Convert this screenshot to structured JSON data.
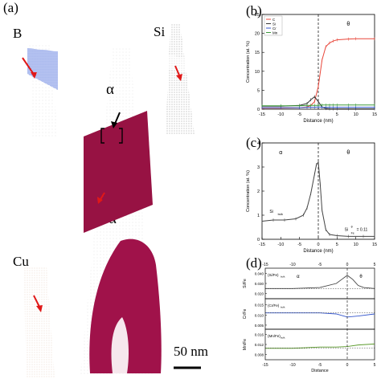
{
  "figure": {
    "panel_a": "(a)",
    "panel_b": "(b)",
    "panel_c": "(c)",
    "panel_d": "(d)",
    "element_B": "B",
    "element_Si": "Si",
    "element_Cu": "Cu",
    "phase_alpha": "α",
    "phase_theta": "θ",
    "phase_alpha_prime": "α'",
    "scale_bar": "50 nm"
  },
  "colors": {
    "boron": "#2f56d6",
    "silicon": "#777777",
    "copper": "#c8a98a",
    "carbide": "#a0124a",
    "arrow_red": "#e01818"
  },
  "chart_data": [
    {
      "type": "line",
      "xlabel": "Distance (nm)",
      "ylabel": "Concentration (at. %)",
      "xlim": [
        -15,
        15
      ],
      "ylim": [
        0,
        25
      ],
      "xticks": [
        "-15",
        "-10",
        "-5",
        "0",
        "5",
        "10",
        "15"
      ],
      "yticks": [
        "0",
        "5",
        "10",
        "15",
        "20",
        "25"
      ],
      "region_labels": [
        "α",
        "θ"
      ],
      "legend": [
        "C",
        "Si",
        "Cr",
        "Mn"
      ],
      "x": [
        -15,
        -10,
        -5,
        -3,
        -2,
        -1,
        0,
        1,
        2,
        3,
        4,
        5,
        8,
        10,
        15
      ],
      "series": [
        {
          "name": "C",
          "color": "#e8463a",
          "values": [
            0.3,
            0.3,
            0.4,
            0.6,
            1.0,
            2.0,
            6.0,
            13.0,
            16.5,
            17.5,
            18.0,
            18.3,
            18.5,
            18.6,
            18.6
          ]
        },
        {
          "name": "Si",
          "color": "#333333",
          "values": [
            0.8,
            0.8,
            1.0,
            1.5,
            2.5,
            3.3,
            2.0,
            0.6,
            0.2,
            0.1,
            0.1,
            0.1,
            0.1,
            0.1,
            0.1
          ]
        },
        {
          "name": "Cr",
          "color": "#3355cc",
          "values": [
            0.4,
            0.4,
            0.4,
            0.5,
            0.5,
            0.5,
            0.6,
            0.5,
            0.5,
            0.5,
            0.5,
            0.5,
            0.5,
            0.5,
            0.5
          ]
        },
        {
          "name": "Mn",
          "color": "#3a9a3a",
          "values": [
            0.9,
            0.9,
            0.9,
            1.0,
            1.0,
            1.0,
            1.0,
            1.1,
            1.1,
            1.1,
            1.1,
            1.1,
            1.1,
            1.1,
            1.1
          ]
        }
      ]
    },
    {
      "type": "line",
      "xlabel": "Distance (nm)",
      "ylabel": "Concentration (at. %)",
      "xlim": [
        -15,
        15
      ],
      "ylim": [
        0,
        4
      ],
      "xticks": [
        "-15",
        "-10",
        "-5",
        "0",
        "5",
        "10",
        "15"
      ],
      "yticks": [
        "0",
        "1",
        "2",
        "3",
        "4"
      ],
      "region_labels": [
        "α",
        "θ"
      ],
      "annotations": [
        "Si",
        "bulk",
        "Si",
        "θ",
        "Fe",
        "= 0.11"
      ],
      "x": [
        -15,
        -12,
        -9,
        -6,
        -4,
        -3,
        -2,
        -1,
        -0.5,
        0,
        0.5,
        1,
        2,
        3,
        5,
        8,
        12,
        15
      ],
      "series": [
        {
          "name": "Si",
          "color": "#444444",
          "values": [
            0.75,
            0.8,
            0.8,
            0.85,
            1.0,
            1.3,
            1.9,
            2.7,
            3.1,
            3.2,
            2.3,
            1.2,
            0.4,
            0.2,
            0.15,
            0.12,
            0.12,
            0.12
          ]
        }
      ]
    },
    {
      "type": "line",
      "xlabel": "Distance",
      "xlim": [
        -15,
        5
      ],
      "xticks": [
        "-15",
        "-10",
        "-5",
        "0",
        "5"
      ],
      "region_labels": [
        "α",
        "θ"
      ],
      "panels": [
        {
          "ylabel": "Si/Fe",
          "label": "(Si/Fe)",
          "label_sub": "bulk",
          "yticks": [
            "0.040",
            "0.030",
            "0.020"
          ],
          "ylim": [
            0.015,
            0.045
          ],
          "color": "#444444",
          "x": [
            -15,
            -10,
            -5,
            -2,
            -1,
            0,
            1,
            2,
            3,
            5
          ],
          "values": [
            0.025,
            0.025,
            0.026,
            0.03,
            0.034,
            0.038,
            0.034,
            0.028,
            0.026,
            0.025
          ]
        },
        {
          "ylabel": "Cr/Fe",
          "label": "(Cr/Fe)",
          "label_sub": "bulk",
          "yticks": [
            "0.015",
            "0.010",
            "0.005"
          ],
          "ylim": [
            0.003,
            0.018
          ],
          "color": "#3355cc",
          "x": [
            -15,
            -10,
            -5,
            -2,
            0,
            2,
            5
          ],
          "values": [
            0.011,
            0.011,
            0.011,
            0.0105,
            0.009,
            0.0095,
            0.0105
          ]
        },
        {
          "ylabel": "Mn/Fe",
          "label": "(Mn/Fe)",
          "label_sub": "bulk",
          "yticks": [
            "0.016",
            "0.012",
            "0.008"
          ],
          "ylim": [
            0.006,
            0.018
          ],
          "color": "#5a9a2a",
          "x": [
            -15,
            -10,
            -5,
            -2,
            0,
            2,
            5
          ],
          "values": [
            0.0105,
            0.0105,
            0.011,
            0.011,
            0.0112,
            0.0118,
            0.0122
          ]
        }
      ]
    }
  ]
}
